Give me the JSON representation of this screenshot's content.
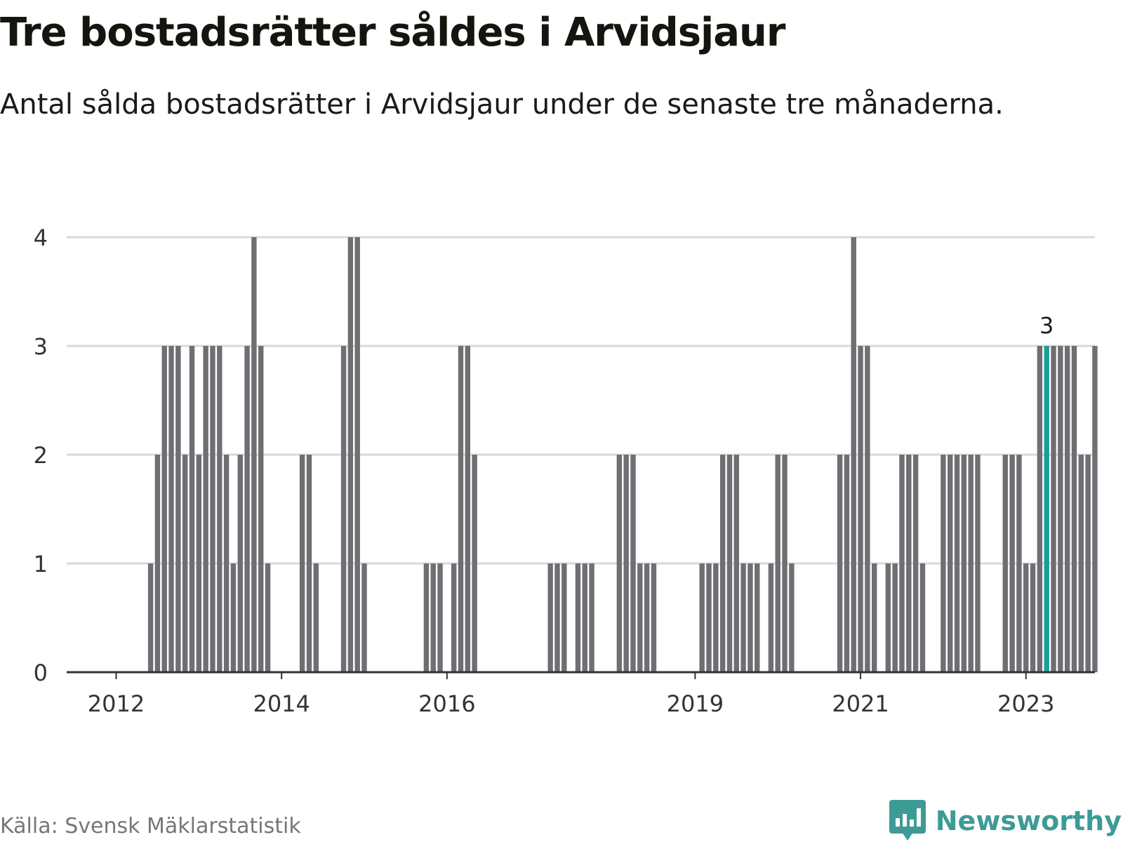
{
  "title": "Tre bostadsrätter såldes i Arvidsjaur",
  "subtitle": "Antal sålda bostadsrätter i Arvidsjaur under de senaste tre månaderna.",
  "source": "Källa: Svensk Mäklarstatistik",
  "brand": "Newsworthy",
  "colors": {
    "bar": "#6e6e73",
    "highlight": "#1a9e96",
    "grid": "#d9d9d9",
    "axis": "#333333",
    "brand": "#3d9b96"
  },
  "chart_data": {
    "type": "bar",
    "ylim": [
      0,
      4
    ],
    "yticks": [
      "0",
      "1",
      "2",
      "3",
      "4"
    ],
    "xticks": [
      {
        "label": "2012",
        "index": 0
      },
      {
        "label": "2014",
        "index": 24
      },
      {
        "label": "2016",
        "index": 48
      },
      {
        "label": "2019",
        "index": 84
      },
      {
        "label": "2021",
        "index": 108
      },
      {
        "label": "2023",
        "index": 132
      }
    ],
    "values": [
      0,
      0,
      0,
      0,
      0,
      1,
      2,
      3,
      3,
      3,
      2,
      3,
      2,
      3,
      3,
      3,
      2,
      1,
      2,
      3,
      4,
      3,
      1,
      0,
      0,
      0,
      0,
      2,
      2,
      1,
      0,
      0,
      0,
      3,
      4,
      4,
      1,
      0,
      0,
      0,
      0,
      0,
      0,
      0,
      0,
      1,
      1,
      1,
      0,
      1,
      3,
      3,
      2,
      0,
      0,
      0,
      0,
      0,
      0,
      0,
      0,
      0,
      0,
      1,
      1,
      1,
      0,
      1,
      1,
      1,
      0,
      0,
      0,
      2,
      2,
      2,
      1,
      1,
      1,
      0,
      0,
      0,
      0,
      0,
      0,
      1,
      1,
      1,
      2,
      2,
      2,
      1,
      1,
      1,
      0,
      1,
      2,
      2,
      1,
      0,
      0,
      0,
      0,
      0,
      0,
      2,
      2,
      4,
      3,
      3,
      1,
      0,
      1,
      1,
      2,
      2,
      2,
      1,
      0,
      0,
      2,
      2,
      2,
      2,
      2,
      2,
      0,
      0,
      0,
      2,
      2,
      2,
      1,
      1,
      3,
      3,
      3,
      3,
      3,
      3,
      2,
      2,
      3
    ],
    "highlight_index": 135,
    "highlight_label": "3",
    "grid": true
  }
}
